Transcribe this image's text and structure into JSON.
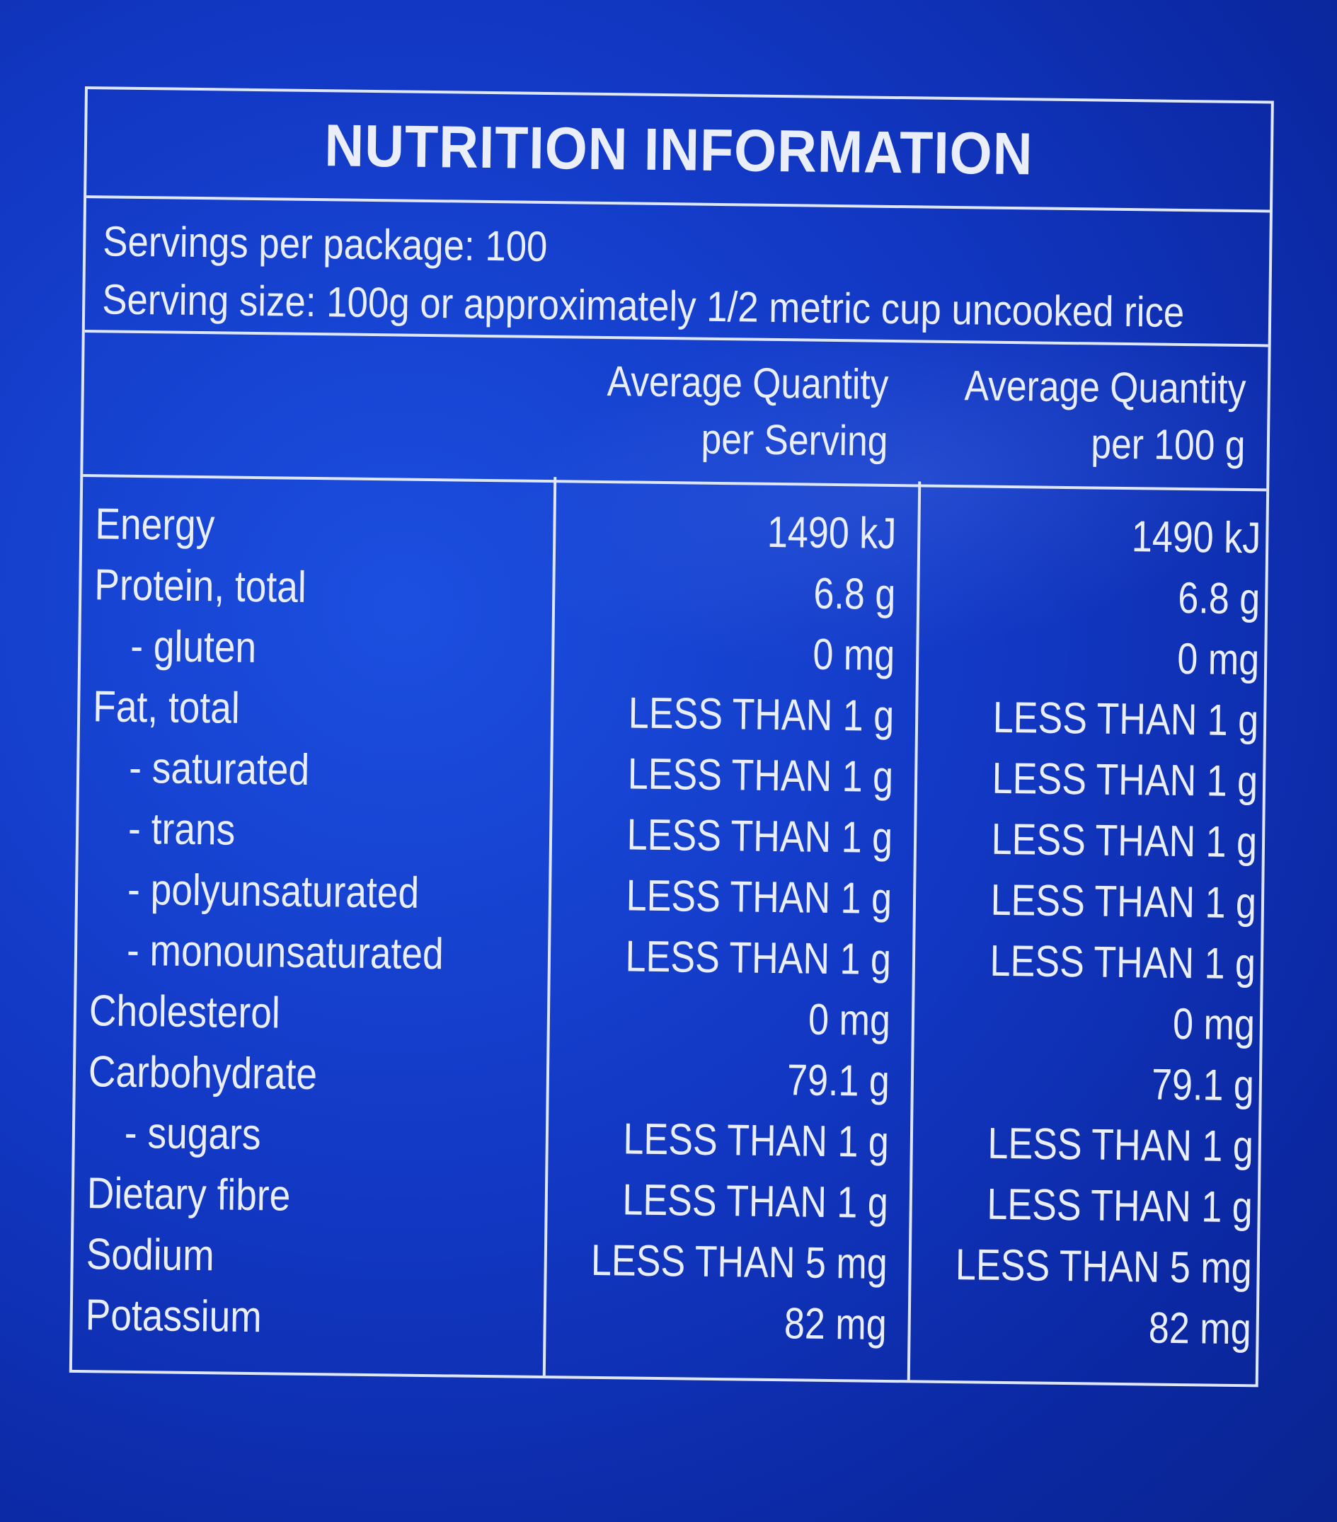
{
  "panel": {
    "title": "NUTRITION INFORMATION",
    "servings_per_package": "Servings per package: 100",
    "serving_size": "Serving size: 100g or approximately 1/2 metric cup uncooked rice",
    "column_headers": [
      {
        "line1": "Average Quantity",
        "line2": "per Serving"
      },
      {
        "line1": "Average Quantity",
        "line2": "per 100 g"
      }
    ],
    "rows": [
      {
        "name": "Energy",
        "indent": false,
        "per_serving": "1490 kJ",
        "per_100g": "1490 kJ"
      },
      {
        "name": "Protein, total",
        "indent": false,
        "per_serving": "6.8 g",
        "per_100g": "6.8 g"
      },
      {
        "name": "- gluten",
        "indent": true,
        "per_serving": "0 mg",
        "per_100g": "0 mg"
      },
      {
        "name": "Fat, total",
        "indent": false,
        "per_serving": "LESS THAN 1 g",
        "per_100g": "LESS THAN 1 g"
      },
      {
        "name": "- saturated",
        "indent": true,
        "per_serving": "LESS THAN 1 g",
        "per_100g": "LESS THAN 1 g"
      },
      {
        "name": "- trans",
        "indent": true,
        "per_serving": "LESS THAN 1 g",
        "per_100g": "LESS THAN 1 g"
      },
      {
        "name": "- polyunsaturated",
        "indent": true,
        "per_serving": "LESS THAN 1 g",
        "per_100g": "LESS THAN 1 g"
      },
      {
        "name": "- monounsaturated",
        "indent": true,
        "per_serving": "LESS THAN 1 g",
        "per_100g": "LESS THAN 1 g"
      },
      {
        "name": "Cholesterol",
        "indent": false,
        "per_serving": "0 mg",
        "per_100g": "0 mg"
      },
      {
        "name": "Carbohydrate",
        "indent": false,
        "per_serving": "79.1 g",
        "per_100g": "79.1 g"
      },
      {
        "name": "- sugars",
        "indent": true,
        "per_serving": "LESS THAN 1 g",
        "per_100g": "LESS THAN 1 g"
      },
      {
        "name": "Dietary fibre",
        "indent": false,
        "per_serving": "LESS THAN 1 g",
        "per_100g": "LESS THAN 1 g"
      },
      {
        "name": "Sodium",
        "indent": false,
        "per_serving": "LESS THAN 5 mg",
        "per_100g": "LESS THAN 5 mg"
      },
      {
        "name": "Potassium",
        "indent": false,
        "per_serving": "82 mg",
        "per_100g": "82 mg"
      }
    ]
  },
  "colors": {
    "background": "#1238c4",
    "text": "#e9eef8",
    "lines": "#dfe6f5"
  }
}
